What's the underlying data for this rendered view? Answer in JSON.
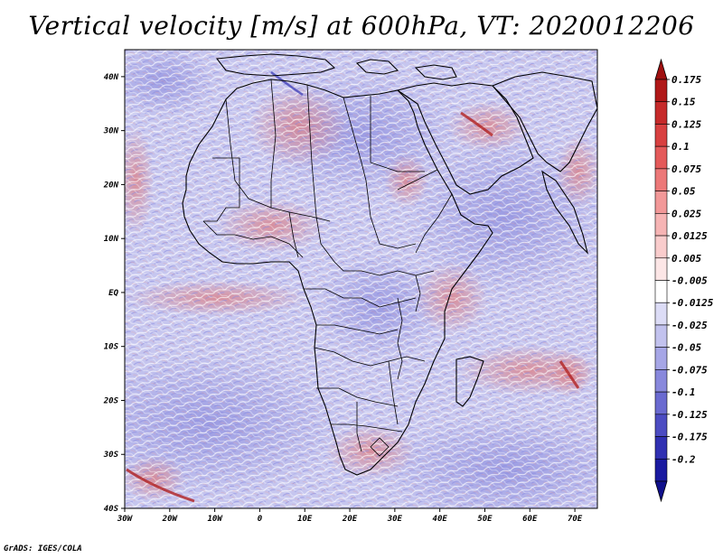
{
  "title": "Vertical velocity [m/s] at 600hPa, VT: 2020012206",
  "credit": "GrADS: IGES/COLA",
  "map": {
    "lat_labels": [
      "40N",
      "30N",
      "20N",
      "10N",
      "EQ",
      "10S",
      "20S",
      "30S",
      "40S"
    ],
    "lon_labels": [
      "30W",
      "20W",
      "10W",
      "0",
      "10E",
      "20E",
      "30E",
      "40E",
      "50E",
      "60E",
      "70E"
    ],
    "lon_range": [
      -30,
      75
    ],
    "lat_range": [
      -40,
      45
    ]
  },
  "colorbar": {
    "labels": [
      "0.175",
      "0.15",
      "0.125",
      "0.1",
      "0.075",
      "0.05",
      "0.025",
      "0.0125",
      "0.005",
      "-0.005",
      "-0.0125",
      "-0.025",
      "-0.05",
      "-0.075",
      "-0.1",
      "-0.125",
      "-0.175",
      "-0.2"
    ],
    "colors": [
      "#b01818",
      "#c62a2a",
      "#d84040",
      "#e45a5a",
      "#ec7878",
      "#f29898",
      "#f6b4b4",
      "#f9cccc",
      "#fce6e6",
      "#ffffff",
      "#dcdcf6",
      "#c2c2ee",
      "#a6a6e6",
      "#8888dc",
      "#6a6ad0",
      "#4c4cc2",
      "#3030b2",
      "#1a1aa0"
    ],
    "top_arrow_color": "#a01010",
    "bottom_arrow_color": "#10108c"
  }
}
